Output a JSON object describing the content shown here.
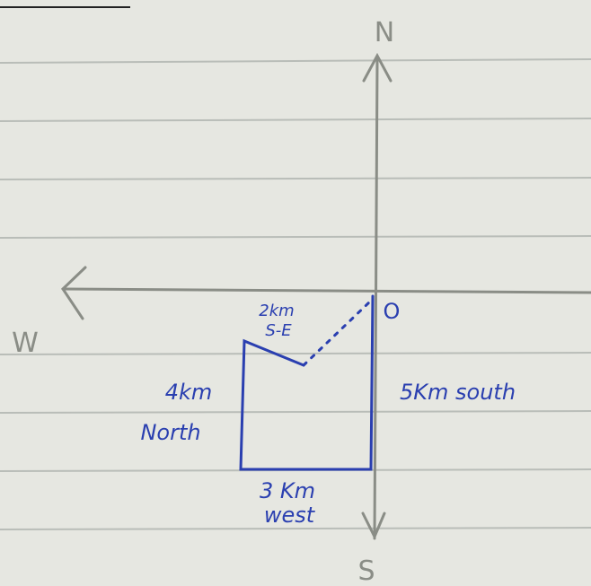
{
  "compass": {
    "north": "N",
    "south": "S",
    "west": "W",
    "origin": "O"
  },
  "legs": [
    {
      "lines": [
        "5Km south"
      ]
    },
    {
      "lines": [
        "3 Km",
        "west"
      ]
    },
    {
      "lines": [
        "4km",
        "North"
      ]
    },
    {
      "lines": [
        "2km",
        "S-E"
      ]
    }
  ]
}
